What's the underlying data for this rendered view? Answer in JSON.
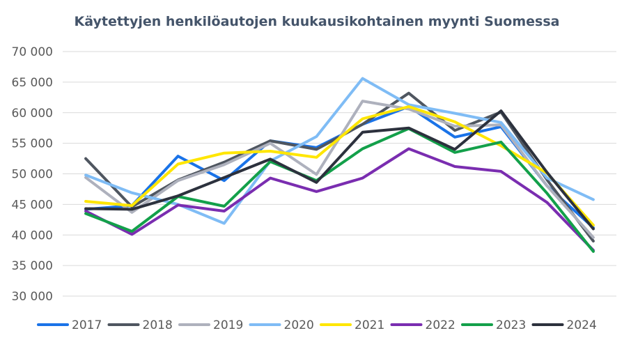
{
  "chart_data": {
    "type": "line",
    "title": "Käytettyjen henkilöautojen kuukausikohtainen myynti Suomessa",
    "xlabel": "",
    "ylabel": "",
    "ylim": [
      30000,
      70000
    ],
    "yticks": [
      30000,
      35000,
      40000,
      45000,
      50000,
      55000,
      60000,
      65000,
      70000
    ],
    "ytick_labels": [
      "30 000",
      "35 000",
      "40 000",
      "45 000",
      "50 000",
      "55 000",
      "60 000",
      "65 000",
      "70 000"
    ],
    "x": [
      1,
      2,
      3,
      4,
      5,
      6,
      7,
      8,
      9,
      10,
      11,
      12
    ],
    "grid": true,
    "legend_position": "bottom",
    "series": [
      {
        "name": "2017",
        "color": "#1a73e8",
        "values": [
          44200,
          44800,
          52900,
          48900,
          55400,
          54300,
          58100,
          61000,
          56000,
          57700,
          48000,
          41200
        ]
      },
      {
        "name": "2018",
        "color": "#4f5660",
        "values": [
          52500,
          44600,
          49000,
          51900,
          55400,
          54000,
          58100,
          63200,
          57100,
          60100,
          49000,
          39000
        ]
      },
      {
        "name": "2019",
        "color": "#aeb1bd",
        "values": [
          49400,
          43700,
          48900,
          51500,
          55000,
          49900,
          61900,
          60600,
          57800,
          58000,
          48000,
          39600
        ]
      },
      {
        "name": "2020",
        "color": "#7fbcf5",
        "values": [
          49800,
          46900,
          45000,
          41900,
          52100,
          56100,
          65600,
          61300,
          59900,
          58400,
          49300,
          45800
        ]
      },
      {
        "name": "2021",
        "color": "#ffe600",
        "values": [
          45500,
          44800,
          51600,
          53400,
          53700,
          52700,
          59000,
          61000,
          58500,
          54600,
          50100,
          41600
        ]
      },
      {
        "name": "2022",
        "color": "#7a2db0",
        "values": [
          43900,
          40100,
          44900,
          43900,
          49300,
          47100,
          49300,
          54100,
          51200,
          50400,
          45300,
          37500
        ]
      },
      {
        "name": "2023",
        "color": "#13a04a",
        "values": [
          43500,
          40600,
          46300,
          44700,
          52000,
          48900,
          54100,
          57400,
          53500,
          55200,
          46800,
          37300
        ]
      },
      {
        "name": "2024",
        "color": "#2c313d",
        "values": [
          44300,
          44200,
          46400,
          49400,
          52400,
          48600,
          56800,
          57500,
          54000,
          60300,
          50200,
          41000
        ]
      }
    ]
  }
}
